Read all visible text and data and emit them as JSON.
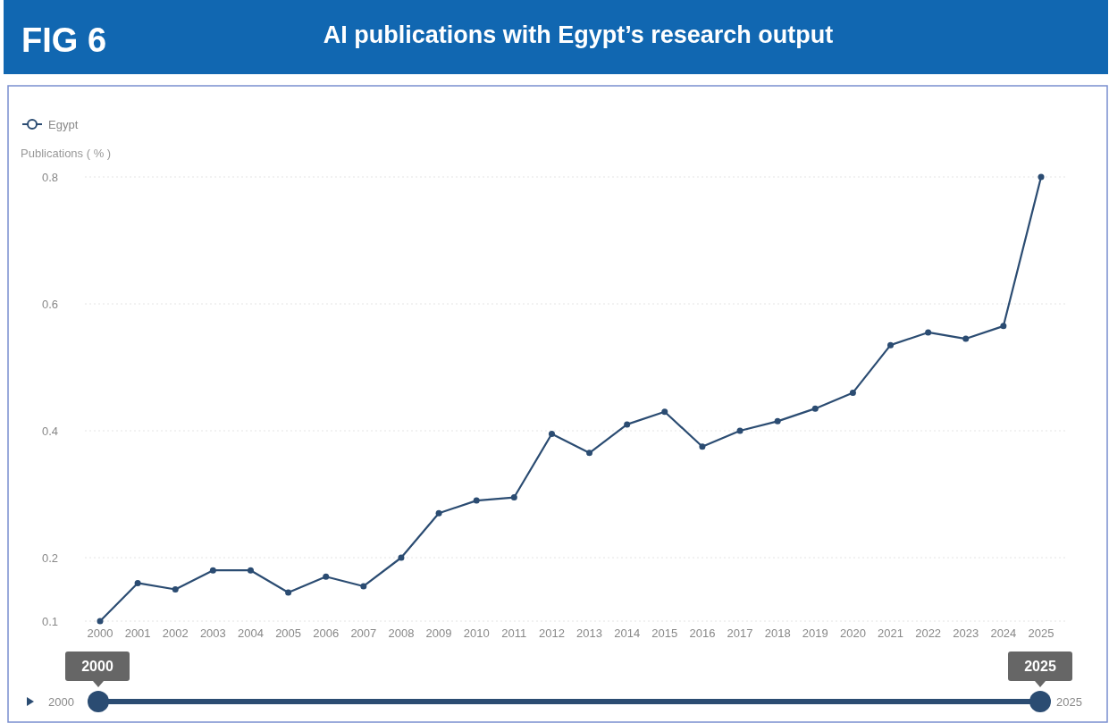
{
  "chart_data": {
    "type": "line",
    "title": "AI publications with Egypt’s research output",
    "ylabel": "Publications ( % )",
    "annotations": [
      "FIG 6",
      "2000",
      "2025",
      "2000",
      "2025"
    ],
    "categories": [
      "2000",
      "2001",
      "2002",
      "2003",
      "2004",
      "2005",
      "2006",
      "2007",
      "2008",
      "2009",
      "2010",
      "2011",
      "2012",
      "2013",
      "2014",
      "2015",
      "2016",
      "2017",
      "2018",
      "2019",
      "2020",
      "2021",
      "2022",
      "2023",
      "2024",
      "2025"
    ],
    "series": [
      {
        "name": "Egypt",
        "color": "#2b4c72",
        "values": [
          0.1,
          0.16,
          0.15,
          0.18,
          0.18,
          0.145,
          0.17,
          0.155,
          0.2,
          0.27,
          0.29,
          0.295,
          0.395,
          0.365,
          0.41,
          0.43,
          0.375,
          0.4,
          0.415,
          0.435,
          0.46,
          0.535,
          0.555,
          0.545,
          0.565,
          0.8
        ]
      }
    ],
    "ylim": [
      0.1,
      0.8
    ],
    "yticks": [
      0.1,
      0.2,
      0.4,
      0.6,
      0.8
    ],
    "grid": "y",
    "legend": "top left",
    "marker": "circle",
    "line_style": "solid"
  }
}
